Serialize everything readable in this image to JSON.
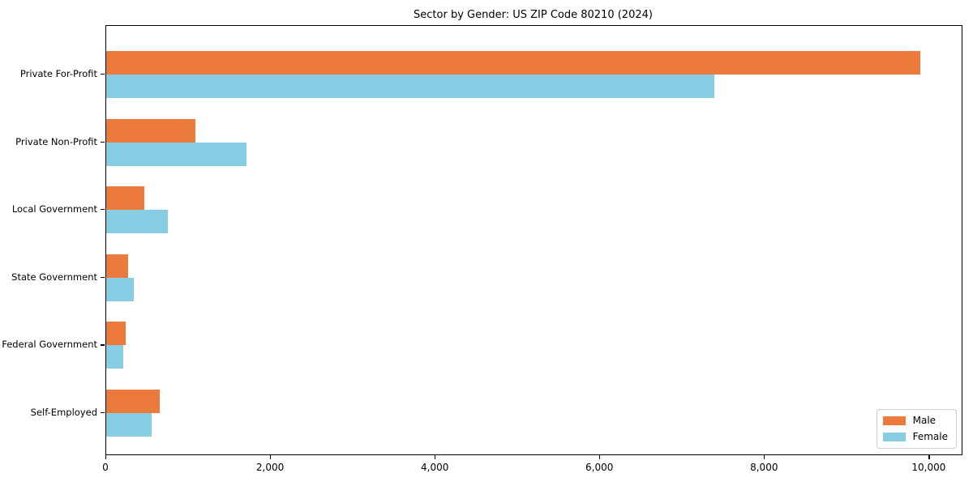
{
  "chart_data": {
    "type": "bar",
    "orientation": "horizontal",
    "title": "Sector by Gender: US ZIP Code 80210 (2024)",
    "categories": [
      "Private For-Profit",
      "Private Non-Profit",
      "Local Government",
      "State Government",
      "Federal Government",
      "Self-Employed"
    ],
    "series": [
      {
        "name": "Male",
        "color": "#EC7A3C",
        "values": [
          9890,
          1080,
          460,
          265,
          235,
          650
        ]
      },
      {
        "name": "Female",
        "color": "#87CEE4",
        "values": [
          7390,
          1700,
          750,
          335,
          205,
          550
        ]
      }
    ],
    "xlabel": "",
    "ylabel": "",
    "xlim": [
      0,
      10390
    ],
    "xticks": [
      0,
      2000,
      4000,
      6000,
      8000,
      10000
    ],
    "xtick_labels": [
      "0",
      "2,000",
      "4,000",
      "6,000",
      "8,000",
      "10,000"
    ],
    "grid": false,
    "legend": {
      "position": "lower right",
      "entries": [
        "Male",
        "Female"
      ]
    },
    "colors": {
      "spine": "#000000",
      "background": "#ffffff",
      "legend_border": "#cccccc"
    }
  }
}
